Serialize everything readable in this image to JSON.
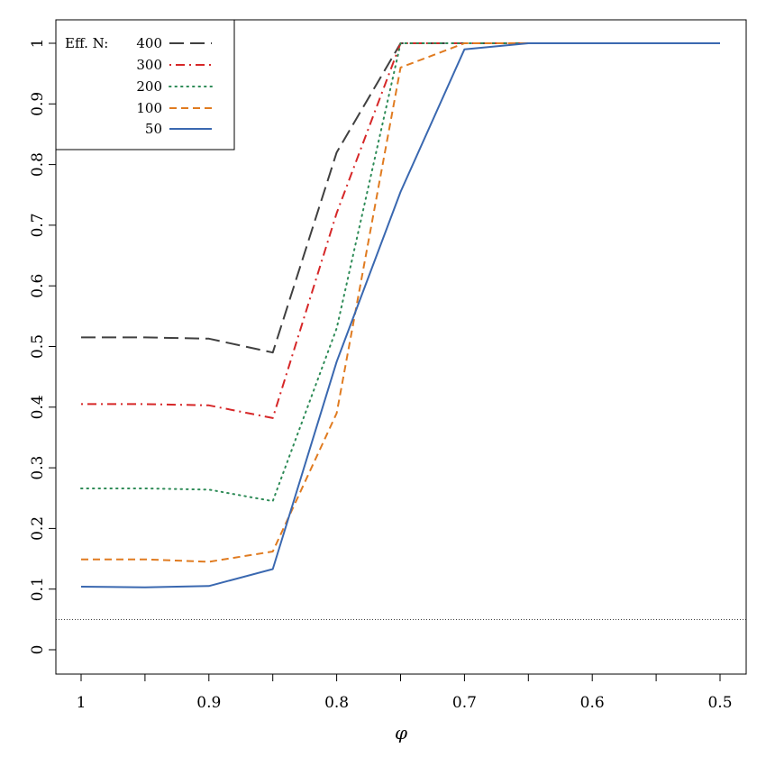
{
  "chart_data": {
    "type": "line",
    "title": "",
    "xlabel": "φ",
    "ylabel": "",
    "x": [
      1,
      0.95,
      0.9,
      0.85,
      0.8,
      0.75,
      0.7,
      0.65,
      0.6,
      0.55,
      0.5
    ],
    "xlim": [
      1,
      0.5
    ],
    "ylim": [
      0,
      1
    ],
    "x_ticks": [
      1,
      0.95,
      0.9,
      0.85,
      0.8,
      0.75,
      0.7,
      0.65,
      0.6,
      0.55,
      0.5
    ],
    "x_tick_labels": [
      "1",
      "",
      "0.9",
      "",
      "0.8",
      "",
      "0.7",
      "",
      "0.6",
      "",
      "0.5"
    ],
    "y_ticks": [
      0,
      0.1,
      0.2,
      0.3,
      0.4,
      0.5,
      0.6,
      0.7,
      0.8,
      0.9,
      1
    ],
    "y_tick_labels": [
      "0",
      "0.1",
      "0.2",
      "0.3",
      "0.4",
      "0.5",
      "0.6",
      "0.7",
      "0.8",
      "0.9",
      "1"
    ],
    "reference_line": {
      "y": 0.05,
      "style": "dotted"
    },
    "legend": {
      "position": "top-left",
      "title": "Eff. N:"
    },
    "series": [
      {
        "name": "400",
        "color": "#404040",
        "dash": "long-dash",
        "values": [
          0.515,
          0.515,
          0.513,
          0.49,
          0.82,
          1.0,
          1.0,
          1.0,
          1.0,
          1.0,
          1.0
        ]
      },
      {
        "name": "300",
        "color": "#d62728",
        "dash": "dot-dash",
        "values": [
          0.405,
          0.405,
          0.403,
          0.382,
          0.72,
          1.0,
          1.0,
          1.0,
          1.0,
          1.0,
          1.0
        ]
      },
      {
        "name": "200",
        "color": "#2e8b57",
        "dash": "dotted",
        "values": [
          0.266,
          0.266,
          0.264,
          0.245,
          0.53,
          1.0,
          1.0,
          1.0,
          1.0,
          1.0,
          1.0
        ]
      },
      {
        "name": "100",
        "color": "#e07b20",
        "dash": "dashed",
        "values": [
          0.149,
          0.149,
          0.145,
          0.162,
          0.39,
          0.96,
          1.0,
          1.0,
          1.0,
          1.0,
          1.0
        ]
      },
      {
        "name": "50",
        "color": "#3a68b0",
        "dash": "solid",
        "values": [
          0.104,
          0.103,
          0.105,
          0.133,
          0.475,
          0.755,
          0.99,
          1.0,
          1.0,
          1.0,
          1.0
        ]
      }
    ]
  }
}
